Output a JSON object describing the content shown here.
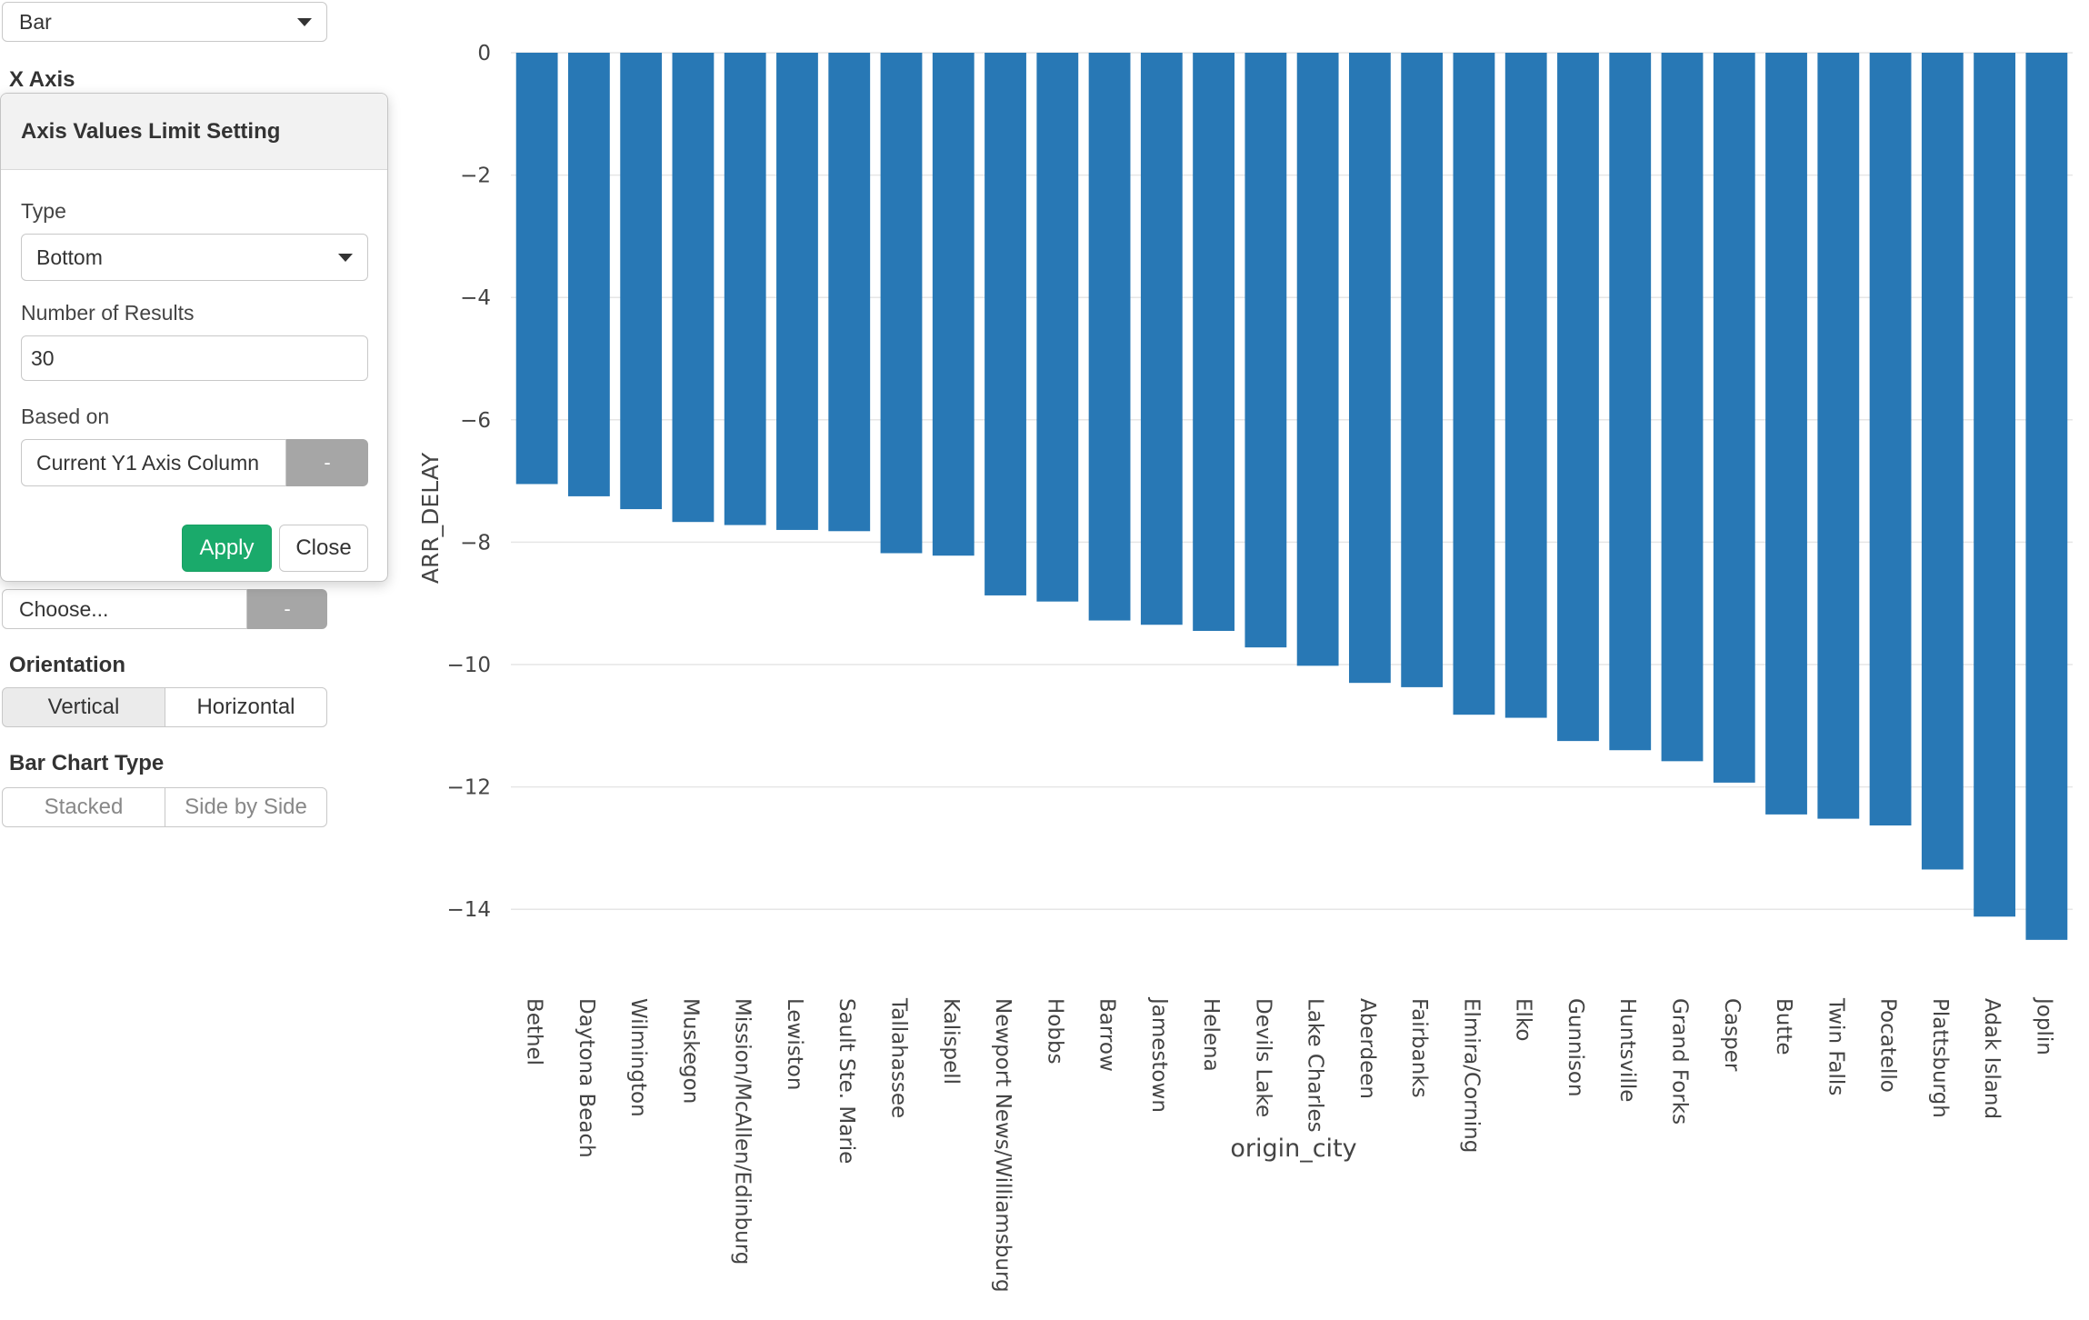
{
  "chart_type_select": {
    "value": "Bar"
  },
  "x_axis_label": "X Axis",
  "popover": {
    "title": "Axis Values Limit Setting",
    "type_label": "Type",
    "type_value": "Bottom",
    "number_label": "Number of Results",
    "number_value": "30",
    "based_on_label": "Based on",
    "based_on_value": "Current Y1 Axis Column",
    "based_on_button": "-",
    "apply_label": "Apply",
    "close_label": "Close"
  },
  "color_by": {
    "value": "Choose...",
    "button": "-"
  },
  "orientation": {
    "label": "Orientation",
    "options": [
      "Vertical",
      "Horizontal"
    ],
    "selected": "Vertical"
  },
  "bar_chart_type": {
    "label": "Bar Chart Type",
    "options": [
      "Stacked",
      "Side by Side"
    ]
  },
  "colors": {
    "bar": "#2878b5",
    "apply": "#1aaa6b"
  },
  "chart_data": {
    "type": "bar",
    "xlabel": "origin_city",
    "ylabel": "ARR_DELAY",
    "ylim": [
      -14.6,
      0
    ],
    "yticks": [
      0,
      -2,
      -4,
      -6,
      -8,
      -10,
      -12,
      -14
    ],
    "ytick_labels": [
      "0",
      "−2",
      "−4",
      "−6",
      "−8",
      "−10",
      "−12",
      "−14"
    ],
    "grid": true,
    "categories": [
      "Bethel",
      "Daytona Beach",
      "Wilmington",
      "Muskegon",
      "Mission/McAllen/Edinburg",
      "Lewiston",
      "Sault Ste. Marie",
      "Tallahassee",
      "Kalispell",
      "Newport News/Williamsburg",
      "Hobbs",
      "Barrow",
      "Jamestown",
      "Helena",
      "Devils Lake",
      "Lake Charles",
      "Aberdeen",
      "Fairbanks",
      "Elmira/Corning",
      "Elko",
      "Gunnison",
      "Huntsville",
      "Grand Forks",
      "Casper",
      "Butte",
      "Twin Falls",
      "Pocatello",
      "Plattsburgh",
      "Adak Island",
      "Joplin"
    ],
    "values": [
      -7.05,
      -7.25,
      -7.46,
      -7.67,
      -7.72,
      -7.8,
      -7.82,
      -8.18,
      -8.22,
      -8.87,
      -8.97,
      -9.28,
      -9.35,
      -9.45,
      -9.72,
      -10.02,
      -10.3,
      -10.37,
      -10.82,
      -10.87,
      -11.25,
      -11.4,
      -11.58,
      -11.93,
      -12.45,
      -12.52,
      -12.63,
      -13.35,
      -14.12,
      -14.5
    ]
  }
}
